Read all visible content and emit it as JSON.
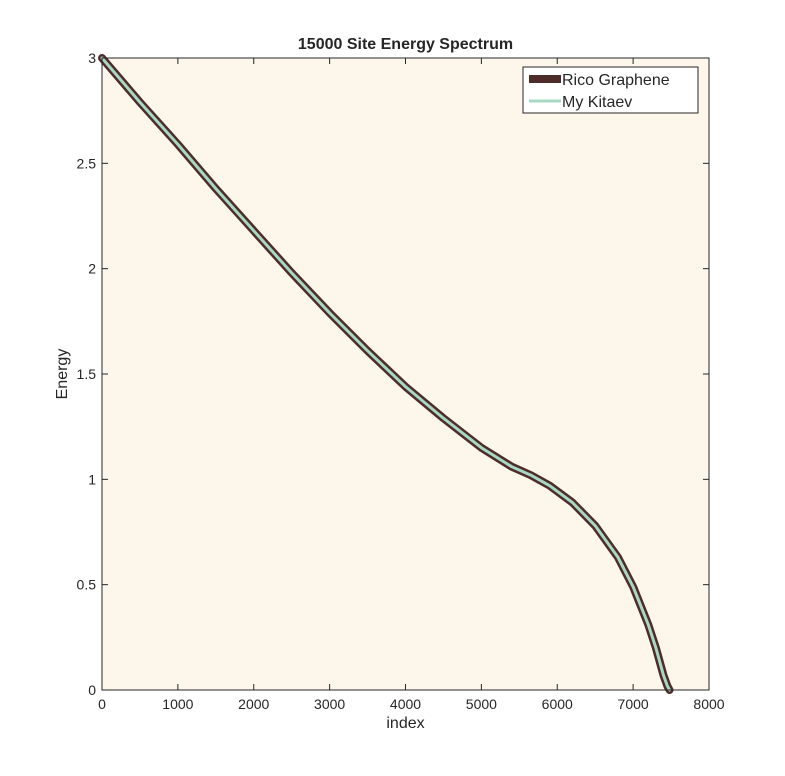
{
  "chart_data": {
    "type": "line",
    "title": "15000 Site Energy Spectrum",
    "xlabel": "index",
    "ylabel": "Energy",
    "xlim": [
      0,
      8000
    ],
    "ylim": [
      0,
      3
    ],
    "xticks": [
      "0",
      "1000",
      "2000",
      "3000",
      "4000",
      "5000",
      "6000",
      "7000",
      "8000"
    ],
    "yticks": [
      "0",
      "0.5",
      "1",
      "1.5",
      "2",
      "2.5",
      "3"
    ],
    "grid": false,
    "legend_position": "top-right",
    "plot_background": "#fdf6eb",
    "series": [
      {
        "name": "Rico Graphene",
        "color": "#4e2c2a",
        "x": [
          0,
          500,
          1000,
          1500,
          2000,
          2500,
          3000,
          3500,
          4000,
          4500,
          5000,
          5400,
          5650,
          5900,
          6200,
          6500,
          6800,
          7000,
          7200,
          7300,
          7400,
          7450,
          7480
        ],
        "y": [
          3.0,
          2.79,
          2.59,
          2.38,
          2.18,
          1.98,
          1.79,
          1.61,
          1.44,
          1.29,
          1.15,
          1.06,
          1.02,
          0.97,
          0.89,
          0.78,
          0.63,
          0.49,
          0.31,
          0.2,
          0.07,
          0.02,
          0.0
        ]
      },
      {
        "name": "My Kitaev",
        "color": "#a6d8c4",
        "x": [
          0,
          500,
          1000,
          1500,
          2000,
          2500,
          3000,
          3500,
          4000,
          4500,
          5000,
          5400,
          5650,
          5900,
          6200,
          6500,
          6800,
          7000,
          7200,
          7300,
          7400,
          7450,
          7480
        ],
        "y": [
          3.0,
          2.79,
          2.59,
          2.38,
          2.18,
          1.98,
          1.79,
          1.61,
          1.44,
          1.29,
          1.15,
          1.06,
          1.02,
          0.97,
          0.89,
          0.78,
          0.63,
          0.49,
          0.31,
          0.2,
          0.07,
          0.02,
          0.0
        ]
      }
    ]
  }
}
